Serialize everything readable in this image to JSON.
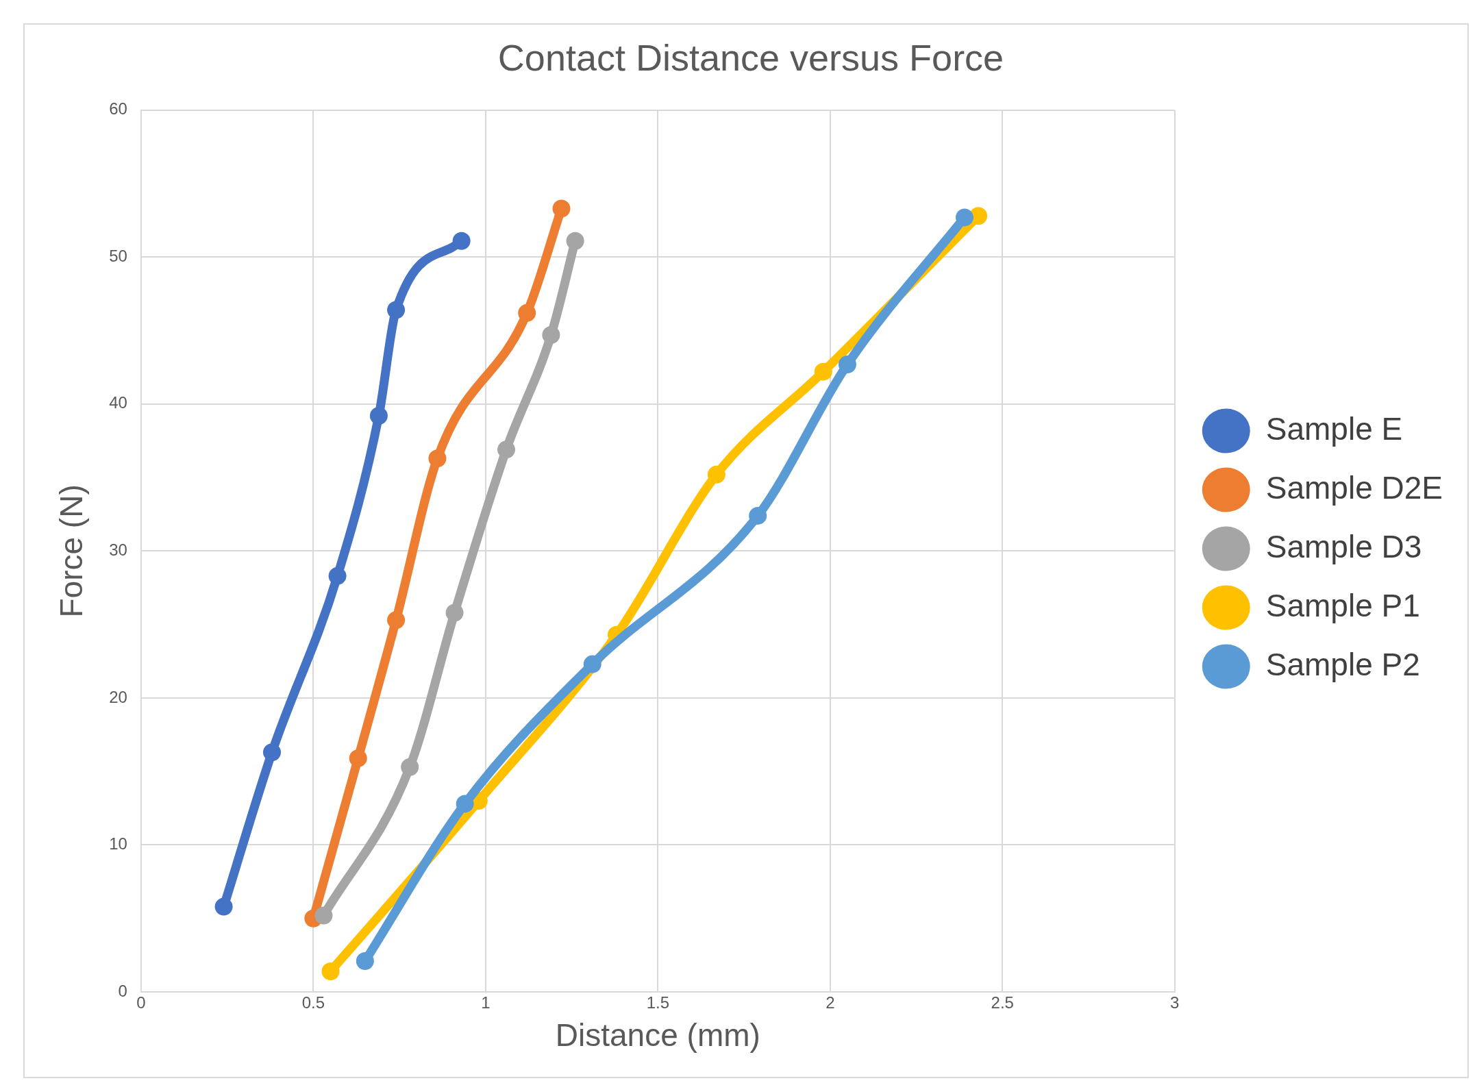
{
  "chart_data": {
    "type": "line",
    "title": "Contact Distance versus Force",
    "xlabel": "Distance (mm)",
    "ylabel": "Force (N)",
    "xlim": [
      0,
      3
    ],
    "xticks": [
      0,
      0.5,
      1,
      1.5,
      2,
      2.5,
      3
    ],
    "ylim": [
      0,
      60
    ],
    "yticks": [
      0,
      10,
      20,
      30,
      40,
      50,
      60
    ],
    "grid": true,
    "legend": "right",
    "marker": "circle",
    "line_style": "solid",
    "series": [
      {
        "name": "Sample E",
        "color": "#4472c4",
        "x": [
          0.24,
          0.38,
          0.57,
          0.69,
          0.74,
          0.93
        ],
        "values": [
          5.8,
          16.3,
          28.3,
          39.2,
          46.4,
          51.1
        ]
      },
      {
        "name": "Sample D2E",
        "color": "#ed7d31",
        "x": [
          0.5,
          0.63,
          0.74,
          0.86,
          1.12,
          1.22
        ],
        "values": [
          5.0,
          15.9,
          25.3,
          36.3,
          46.2,
          53.3
        ]
      },
      {
        "name": "Sample D3",
        "color": "#a5a5a5",
        "x": [
          0.53,
          0.78,
          0.91,
          1.06,
          1.19,
          1.26
        ],
        "values": [
          5.2,
          15.3,
          25.8,
          36.9,
          44.7,
          51.1
        ]
      },
      {
        "name": "Sample P1",
        "color": "#ffc000",
        "x": [
          0.55,
          0.98,
          1.38,
          1.67,
          1.98,
          2.43
        ],
        "values": [
          1.4,
          13.0,
          24.3,
          35.2,
          42.2,
          52.8
        ]
      },
      {
        "name": "Sample P2",
        "color": "#5b9bd5",
        "x": [
          0.65,
          0.94,
          1.31,
          1.79,
          2.05,
          2.39
        ],
        "values": [
          2.1,
          12.8,
          22.3,
          32.4,
          42.7,
          52.7
        ]
      }
    ]
  }
}
